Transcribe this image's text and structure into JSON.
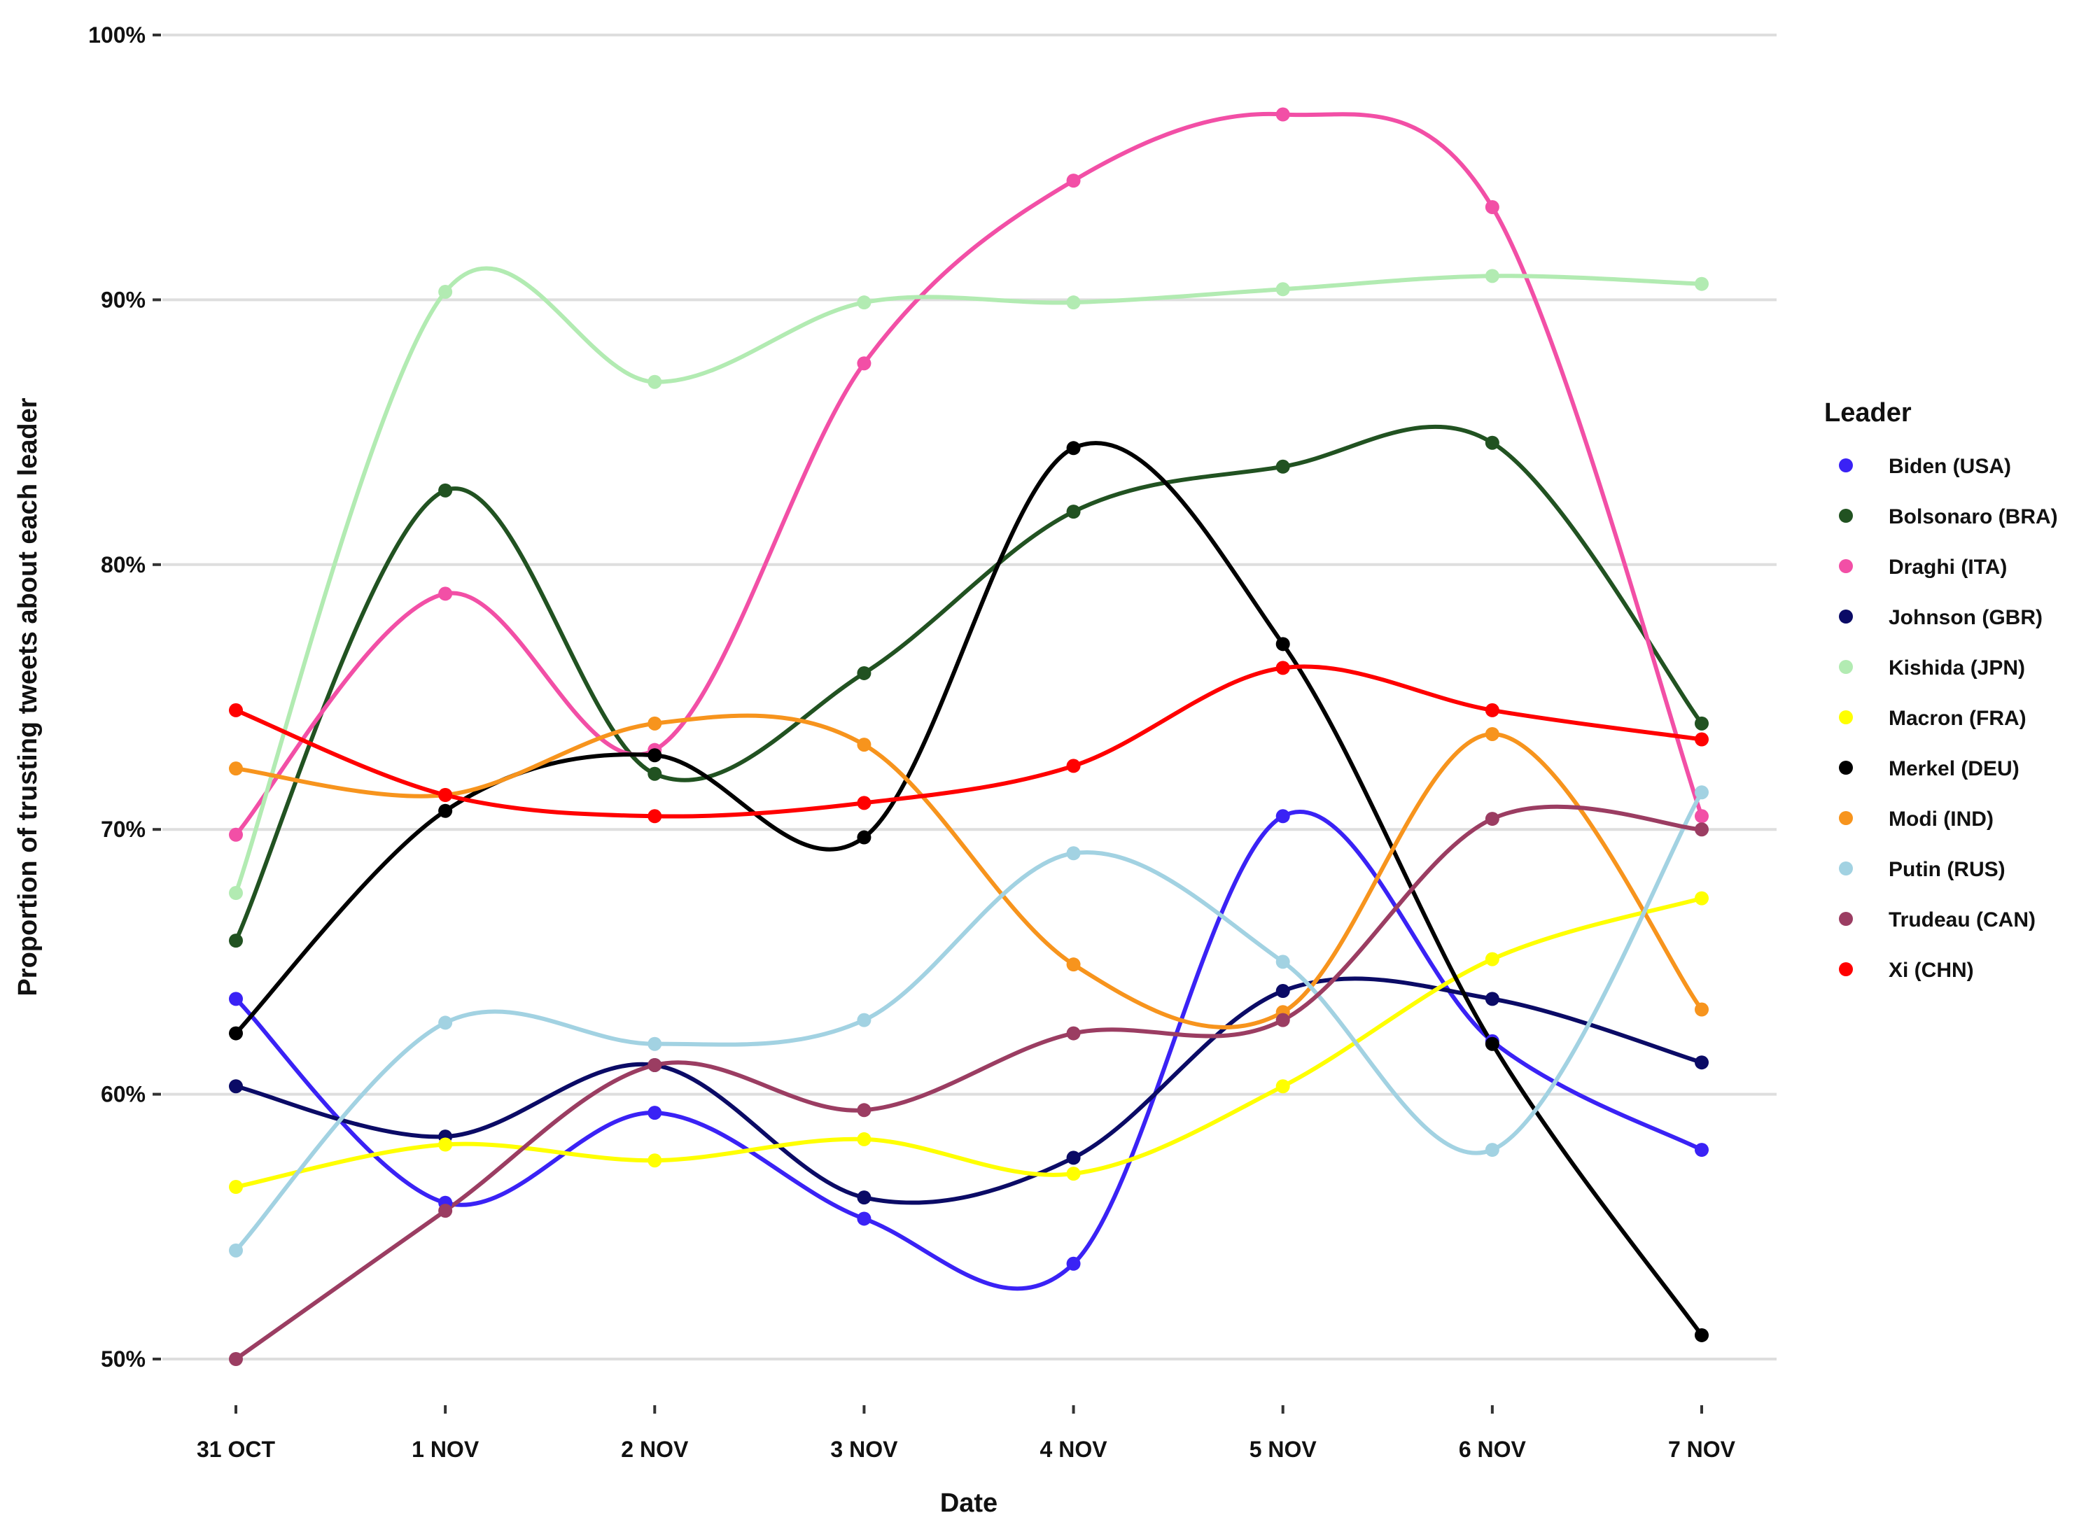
{
  "chart_data": {
    "type": "line",
    "title": "",
    "xlabel": "Date",
    "ylabel": "Proportion of trusting tweets about each leader",
    "ylim": [
      50,
      100
    ],
    "yticks": [
      50,
      60,
      70,
      80,
      90,
      100
    ],
    "ytick_labels": [
      "50%",
      "60%",
      "70%",
      "80%",
      "90%",
      "100%"
    ],
    "categories": [
      "31 OCT",
      "1 NOV",
      "2 NOV",
      "3 NOV",
      "4 NOV",
      "5 NOV",
      "6 NOV",
      "7 NOV"
    ],
    "grid": "horizontal",
    "legend": {
      "title": "Leader",
      "placement": "right"
    },
    "series": [
      {
        "name": "Biden (USA)",
        "color": "#3A22F5",
        "values": [
          63.6,
          55.9,
          59.3,
          55.3,
          53.6,
          70.5,
          62.0,
          57.9
        ]
      },
      {
        "name": "Bolsonaro (BRA)",
        "color": "#215221",
        "values": [
          65.8,
          82.8,
          72.1,
          75.9,
          82.0,
          83.7,
          84.6,
          74.0
        ]
      },
      {
        "name": "Draghi (ITA)",
        "color": "#F24FA6",
        "values": [
          69.8,
          78.9,
          73.0,
          87.6,
          94.5,
          97.0,
          93.5,
          70.5
        ]
      },
      {
        "name": "Johnson (GBR)",
        "color": "#0B0B66",
        "values": [
          60.3,
          58.4,
          61.1,
          56.1,
          57.6,
          63.9,
          63.6,
          61.2
        ]
      },
      {
        "name": "Kishida (JPN)",
        "color": "#B2EBB2",
        "values": [
          67.6,
          90.3,
          86.9,
          89.9,
          89.9,
          90.4,
          90.9,
          90.6
        ]
      },
      {
        "name": "Macron (FRA)",
        "color": "#FFFF00",
        "values": [
          56.5,
          58.1,
          57.5,
          58.3,
          57.0,
          60.3,
          65.1,
          67.4
        ]
      },
      {
        "name": "Merkel (DEU)",
        "color": "#000000",
        "values": [
          62.3,
          70.7,
          72.8,
          69.7,
          84.4,
          77.0,
          61.9,
          50.9
        ]
      },
      {
        "name": "Modi (IND)",
        "color": "#F7941D",
        "values": [
          72.3,
          71.3,
          74.0,
          73.2,
          64.9,
          63.1,
          73.6,
          63.2
        ]
      },
      {
        "name": "Putin (RUS)",
        "color": "#A2D2E2",
        "values": [
          54.1,
          62.7,
          61.9,
          62.8,
          69.1,
          65.0,
          57.9,
          71.4
        ]
      },
      {
        "name": "Trudeau (CAN)",
        "color": "#9B3D62",
        "values": [
          50.0,
          55.6,
          61.1,
          59.4,
          62.3,
          62.8,
          70.4,
          70.0
        ]
      },
      {
        "name": "Xi (CHN)",
        "color": "#FF0000",
        "values": [
          74.5,
          71.3,
          70.5,
          71.0,
          72.4,
          76.1,
          74.5,
          73.4
        ]
      }
    ]
  }
}
